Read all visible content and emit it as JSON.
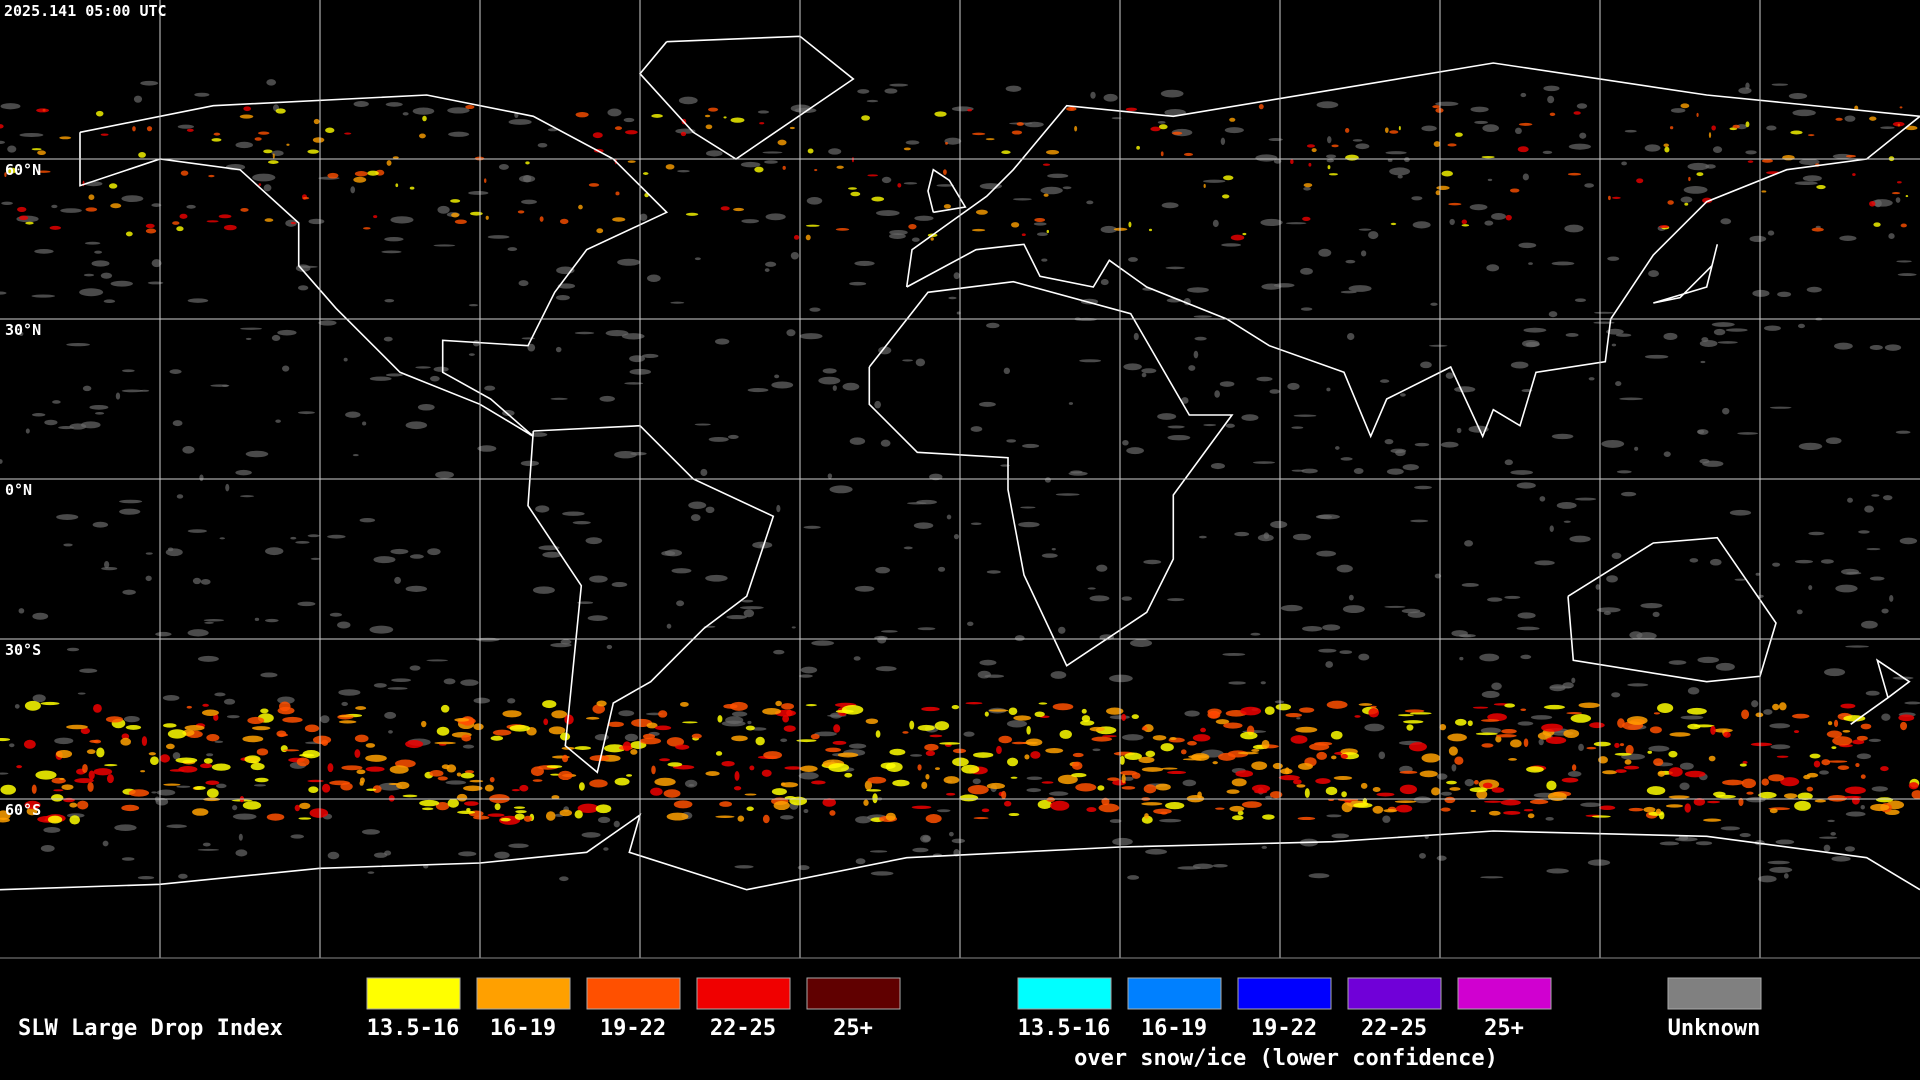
{
  "timestamp": "2025.141 05:00 UTC",
  "lat_labels": [
    "60°N",
    "30°N",
    "0°N",
    "30°S",
    "60°S"
  ],
  "legend": {
    "title": "SLW Large Drop Index",
    "items": [
      {
        "label": "13.5-16",
        "color": "#ffff00"
      },
      {
        "label": "16-19",
        "color": "#ffa000"
      },
      {
        "label": "19-22",
        "color": "#ff5000"
      },
      {
        "label": "22-25",
        "color": "#f00000"
      },
      {
        "label": "25+",
        "color": "#600000"
      }
    ],
    "snow_items": [
      {
        "label": "13.5-16",
        "color": "#00ffff"
      },
      {
        "label": "16-19",
        "color": "#0080ff"
      },
      {
        "label": "19-22",
        "color": "#0000ff"
      },
      {
        "label": "22-25",
        "color": "#7000d8"
      },
      {
        "label": "25+",
        "color": "#d000d0"
      }
    ],
    "snow_note": "over snow/ice (lower confidence)",
    "unknown": {
      "label": "Unknown",
      "color": "#808080"
    }
  }
}
